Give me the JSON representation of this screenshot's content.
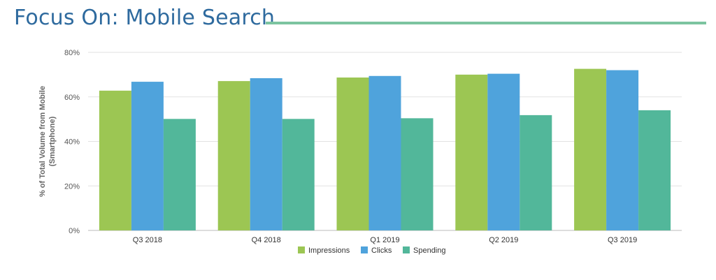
{
  "page": {
    "title": "Focus On: Mobile Search",
    "accent_color": "#7cc4a0"
  },
  "chart_data": {
    "type": "bar",
    "title": "",
    "xlabel": "",
    "ylabel_lines": [
      "% of Total Volume from Mobile",
      "(Smartphone)"
    ],
    "categories": [
      "Q3 2018",
      "Q4 2018",
      "Q1 2019",
      "Q2 2019",
      "Q3 2019"
    ],
    "series": [
      {
        "name": "Impressions",
        "color": "#9cc653",
        "values": [
          62.8,
          67.1,
          68.7,
          70.0,
          72.6
        ]
      },
      {
        "name": "Clicks",
        "color": "#4fa3dc",
        "values": [
          66.8,
          68.4,
          69.4,
          70.4,
          72.0
        ]
      },
      {
        "name": "Spending",
        "color": "#52b79a",
        "values": [
          50.1,
          50.1,
          50.4,
          51.8,
          54.0
        ]
      }
    ],
    "y_ticks": [
      "0%",
      "20%",
      "40%",
      "60%",
      "80%"
    ],
    "ylim": [
      0,
      80
    ],
    "grid": true,
    "legend_position": "bottom"
  }
}
